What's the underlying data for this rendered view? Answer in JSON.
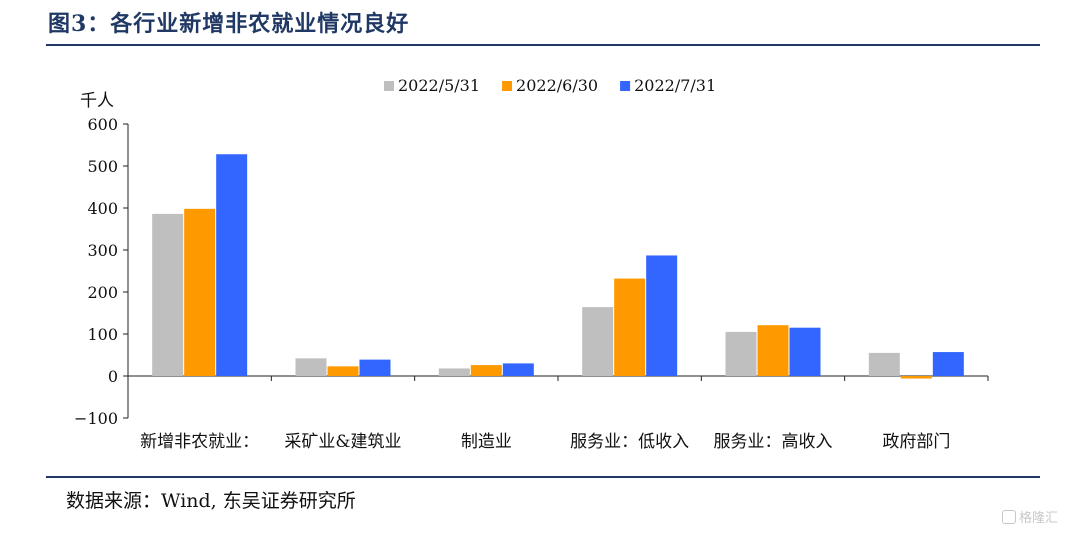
{
  "figure_title": "图3：各行业新增非农就业情况良好",
  "source": "数据来源：Wind, 东吴证券研究所",
  "watermark": "格隆汇",
  "chart_data": {
    "type": "bar",
    "ylabel": "千人",
    "ylim": [
      -100,
      600
    ],
    "yticks": [
      -100,
      0,
      100,
      200,
      300,
      400,
      500,
      600
    ],
    "ytick_labels": [
      "−100",
      "0",
      "100",
      "200",
      "300",
      "400",
      "500",
      "600"
    ],
    "categories": [
      "新增非农就业：",
      "采矿业&建筑业",
      "制造业",
      "服务业：低收入",
      "服务业：高收入",
      "政府部门"
    ],
    "series": [
      {
        "name": "2022/5/31",
        "color": "#bfbfbf",
        "values": [
          386,
          42,
          18,
          164,
          105,
          55
        ]
      },
      {
        "name": "2022/6/30",
        "color": "#ff9900",
        "values": [
          398,
          23,
          26,
          232,
          121,
          -6
        ]
      },
      {
        "name": "2022/7/31",
        "color": "#3366ff",
        "values": [
          528,
          39,
          30,
          287,
          115,
          57
        ]
      }
    ],
    "legend_position": "top",
    "grid": false
  }
}
